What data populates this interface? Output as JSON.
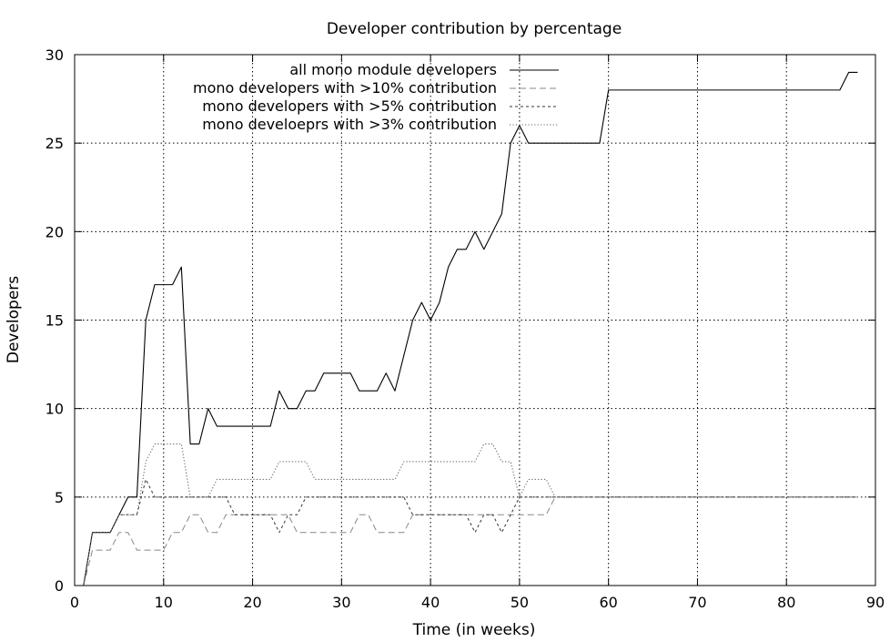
{
  "chart_data": {
    "type": "line",
    "title": "Developer contribution by percentage",
    "xlabel": "Time (in weeks)",
    "ylabel": "Developers",
    "xlim": [
      0,
      90
    ],
    "ylim": [
      0,
      30
    ],
    "xticks": [
      0,
      10,
      20,
      30,
      40,
      50,
      60,
      70,
      80,
      90
    ],
    "yticks": [
      0,
      5,
      10,
      15,
      20,
      25,
      30
    ],
    "grid": true,
    "legend_position": "top-center",
    "x": [
      1,
      2,
      3,
      4,
      5,
      6,
      7,
      8,
      9,
      10,
      11,
      12,
      13,
      14,
      15,
      16,
      17,
      18,
      19,
      20,
      21,
      22,
      23,
      24,
      25,
      26,
      27,
      28,
      29,
      30,
      31,
      32,
      33,
      34,
      35,
      36,
      37,
      38,
      39,
      40,
      41,
      42,
      43,
      44,
      45,
      46,
      47,
      48,
      49,
      50,
      51,
      52,
      53,
      54,
      55,
      56,
      57,
      58,
      59,
      60,
      61,
      62,
      63,
      64,
      65,
      66,
      67,
      68,
      69,
      70,
      71,
      72,
      73,
      74,
      75,
      76,
      77,
      78,
      79,
      80,
      81,
      82,
      83,
      84,
      85,
      86,
      87,
      88
    ],
    "series": [
      {
        "name": "all mono module developers",
        "style": "solid",
        "color": "#000000",
        "values": [
          0,
          3,
          3,
          3,
          4,
          5,
          5,
          15,
          17,
          17,
          17,
          18,
          8,
          8,
          10,
          9,
          9,
          9,
          9,
          9,
          9,
          9,
          11,
          10,
          10,
          11,
          11,
          12,
          12,
          12,
          12,
          11,
          11,
          11,
          12,
          11,
          13,
          15,
          16,
          15,
          16,
          18,
          19,
          19,
          20,
          19,
          20,
          21,
          25,
          26,
          25,
          25,
          25,
          25,
          25,
          25,
          25,
          25,
          25,
          28,
          28,
          28,
          28,
          28,
          28,
          28,
          28,
          28,
          28,
          28,
          28,
          28,
          28,
          28,
          28,
          28,
          28,
          28,
          28,
          28,
          28,
          28,
          28,
          28,
          28,
          28,
          29,
          29
        ]
      },
      {
        "name": "mono developers with >10% contribution",
        "style": "dashed",
        "color": "#888888",
        "values": [
          0,
          2,
          2,
          2,
          3,
          3,
          2,
          2,
          2,
          2,
          3,
          3,
          4,
          4,
          3,
          3,
          4,
          4,
          4,
          4,
          4,
          4,
          4,
          4,
          3,
          3,
          3,
          3,
          3,
          3,
          3,
          4,
          4,
          3,
          3,
          3,
          3,
          4,
          4,
          4,
          4,
          4,
          4,
          4,
          4,
          4,
          4,
          4,
          4,
          4,
          4,
          4,
          4,
          5,
          5,
          5,
          5,
          5,
          5,
          5,
          5,
          5,
          5,
          5,
          5,
          5,
          5,
          5,
          5,
          5,
          5,
          5,
          5,
          5,
          5,
          5,
          5,
          5,
          5,
          5,
          5,
          5,
          5,
          5,
          5,
          5,
          5,
          5
        ]
      },
      {
        "name": "mono developers with >5% contribution",
        "style": "dashed-fine",
        "color": "#333333",
        "values": [
          0,
          3,
          3,
          3,
          4,
          4,
          4,
          6,
          5,
          5,
          5,
          5,
          5,
          5,
          5,
          5,
          5,
          4,
          4,
          4,
          4,
          4,
          3,
          4,
          4,
          5,
          5,
          5,
          5,
          5,
          5,
          5,
          5,
          5,
          5,
          5,
          5,
          4,
          4,
          4,
          4,
          4,
          4,
          4,
          3,
          4,
          4,
          3,
          4,
          5,
          5,
          5,
          5,
          5,
          5,
          5,
          5,
          5,
          5,
          5,
          5,
          5,
          5,
          5,
          5,
          5,
          5,
          5,
          5,
          5,
          5,
          5,
          5,
          5,
          5,
          5,
          5,
          5,
          5,
          5,
          5,
          5,
          5,
          5,
          5,
          5,
          5,
          5
        ]
      },
      {
        "name": "mono develoeprs with >3% contribution",
        "style": "dotted",
        "color": "#666666",
        "values": [
          0,
          3,
          3,
          3,
          4,
          4,
          4,
          7,
          8,
          8,
          8,
          8,
          5,
          5,
          5,
          6,
          6,
          6,
          6,
          6,
          6,
          6,
          7,
          7,
          7,
          7,
          6,
          6,
          6,
          6,
          6,
          6,
          6,
          6,
          6,
          6,
          7,
          7,
          7,
          7,
          7,
          7,
          7,
          7,
          7,
          8,
          8,
          7,
          7,
          5,
          6,
          6,
          6,
          5,
          5,
          5,
          5,
          5,
          5,
          5,
          5,
          5,
          5,
          5,
          5,
          5,
          5,
          5,
          5,
          5,
          5,
          5,
          5,
          5,
          5,
          5,
          5,
          5,
          5,
          5,
          5,
          5,
          5,
          5,
          5,
          5,
          5,
          5
        ]
      }
    ]
  }
}
